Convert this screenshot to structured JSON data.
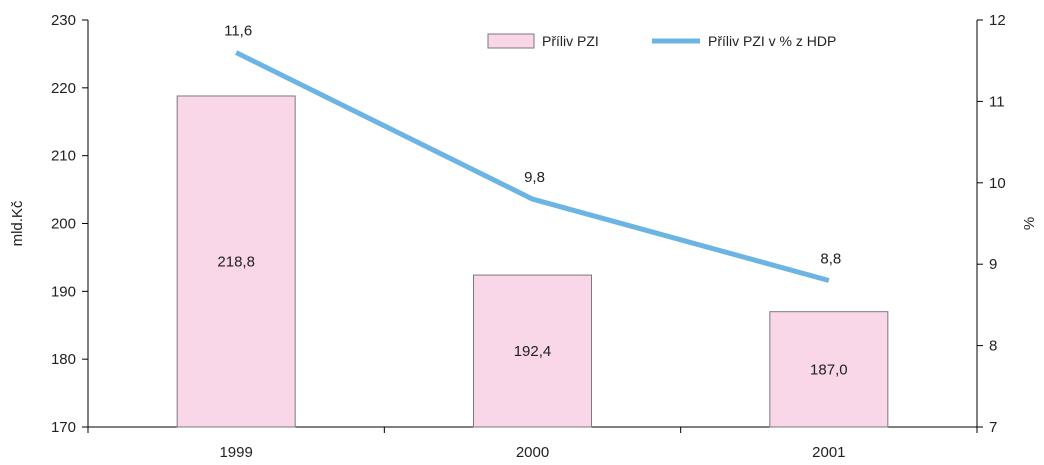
{
  "chart_data": {
    "type": "bar",
    "categories": [
      "1999",
      "2000",
      "2001"
    ],
    "series": [
      {
        "name": "Příliv PZI",
        "type": "bar",
        "axis": "left",
        "values": [
          218.8,
          192.4,
          187.0
        ],
        "value_labels": [
          "218,8",
          "192,4",
          "187,0"
        ],
        "color": "#f9d6e8",
        "border_color": "#7a7a7a"
      },
      {
        "name": "Příliv PZI v % z HDP",
        "type": "line",
        "axis": "right",
        "values": [
          11.6,
          9.8,
          8.8
        ],
        "value_labels": [
          "11,6",
          "9,8",
          "8,8"
        ],
        "color": "#6cb4e4"
      }
    ],
    "y_left": {
      "label": "mld.Kč",
      "min": 170,
      "max": 230,
      "ticks": [
        "170",
        "180",
        "190",
        "200",
        "210",
        "220",
        "230"
      ]
    },
    "y_right": {
      "label": "%",
      "min": 7,
      "max": 12,
      "ticks": [
        "7",
        "8",
        "9",
        "10",
        "11",
        "12"
      ]
    },
    "legend_position": "top-right",
    "grid": false
  }
}
